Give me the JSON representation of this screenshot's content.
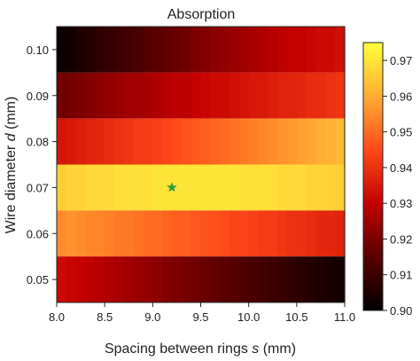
{
  "chart_data": {
    "type": "heatmap",
    "title": "Absorption",
    "xlabel_main": "Spacing between rings ",
    "xlabel_var": "s",
    "xlabel_unit": " (mm)",
    "ylabel_main": "Wire diameter ",
    "ylabel_var": "d",
    "ylabel_unit": " (mm)",
    "xlim": [
      8.0,
      11.0
    ],
    "ylim": [
      0.045,
      0.105
    ],
    "x_ticks": [
      8.0,
      8.5,
      9.0,
      9.5,
      10.0,
      10.5,
      11.0
    ],
    "x_tick_labels": [
      "8.0",
      "8.5",
      "9.0",
      "9.5",
      "10.0",
      "10.5",
      "11.0"
    ],
    "y_ticks": [
      0.05,
      0.06,
      0.07,
      0.08,
      0.09,
      0.1
    ],
    "y_tick_labels": [
      "0.05",
      "0.06",
      "0.07",
      "0.08",
      "0.09",
      "0.10"
    ],
    "colorbar": {
      "min": 0.9,
      "max": 0.975,
      "ticks": [
        0.9,
        0.91,
        0.92,
        0.93,
        0.94,
        0.95,
        0.96,
        0.97
      ],
      "tick_labels": [
        "0.90",
        "0.91",
        "0.92",
        "0.93",
        "0.94",
        "0.95",
        "0.96",
        "0.97"
      ],
      "colormap": "hot"
    },
    "rows": [
      {
        "d": 0.1,
        "values": [
          0.902,
          0.903,
          0.905,
          0.906,
          0.908,
          0.909,
          0.91,
          0.911,
          0.912,
          0.914,
          0.915,
          0.916,
          0.917,
          0.918,
          0.92,
          0.921,
          0.922,
          0.923,
          0.924,
          0.925,
          0.926,
          0.927,
          0.928,
          0.929,
          0.93,
          0.93,
          0.931,
          0.932,
          0.932,
          0.933
        ]
      },
      {
        "d": 0.09,
        "values": [
          0.918,
          0.919,
          0.92,
          0.921,
          0.922,
          0.923,
          0.924,
          0.925,
          0.925,
          0.926,
          0.927,
          0.928,
          0.929,
          0.929,
          0.93,
          0.931,
          0.932,
          0.932,
          0.933,
          0.934,
          0.935,
          0.935,
          0.936,
          0.937,
          0.937,
          0.938,
          0.939,
          0.939,
          0.94,
          0.941
        ]
      },
      {
        "d": 0.08,
        "values": [
          0.934,
          0.935,
          0.936,
          0.937,
          0.938,
          0.939,
          0.94,
          0.941,
          0.942,
          0.942,
          0.943,
          0.944,
          0.945,
          0.946,
          0.947,
          0.948,
          0.949,
          0.95,
          0.951,
          0.952,
          0.953,
          0.954,
          0.955,
          0.956,
          0.957,
          0.958,
          0.959,
          0.96,
          0.961,
          0.962
        ]
      },
      {
        "d": 0.07,
        "values": [
          0.966,
          0.967,
          0.967,
          0.968,
          0.968,
          0.968,
          0.969,
          0.969,
          0.969,
          0.969,
          0.97,
          0.97,
          0.97,
          0.97,
          0.97,
          0.97,
          0.97,
          0.97,
          0.97,
          0.969,
          0.969,
          0.969,
          0.969,
          0.968,
          0.968,
          0.968,
          0.967,
          0.967,
          0.967,
          0.966
        ]
      },
      {
        "d": 0.06,
        "values": [
          0.955,
          0.956,
          0.955,
          0.954,
          0.954,
          0.953,
          0.952,
          0.952,
          0.951,
          0.95,
          0.95,
          0.949,
          0.948,
          0.948,
          0.947,
          0.946,
          0.946,
          0.945,
          0.944,
          0.944,
          0.943,
          0.942,
          0.942,
          0.941,
          0.94,
          0.94,
          0.939,
          0.938,
          0.938,
          0.937
        ]
      },
      {
        "d": 0.05,
        "values": [
          0.932,
          0.931,
          0.93,
          0.929,
          0.928,
          0.927,
          0.926,
          0.925,
          0.924,
          0.923,
          0.922,
          0.921,
          0.92,
          0.919,
          0.918,
          0.917,
          0.916,
          0.915,
          0.914,
          0.913,
          0.912,
          0.911,
          0.91,
          0.909,
          0.908,
          0.907,
          0.906,
          0.905,
          0.904,
          0.903
        ]
      }
    ],
    "marker": {
      "shape": "star",
      "x": 9.2,
      "y": 0.07,
      "color": "#2e9e3e"
    },
    "legend": "none",
    "grid": false
  }
}
